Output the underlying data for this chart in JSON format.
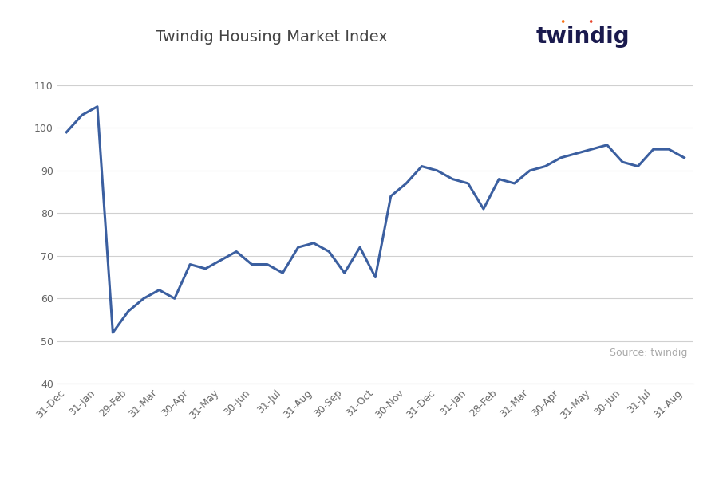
{
  "title": "Twindig Housing Market Index",
  "line_color": "#3B5FA0",
  "line_width": 2.2,
  "background_color": "#ffffff",
  "ylim": [
    40,
    115
  ],
  "yticks": [
    40,
    50,
    60,
    70,
    80,
    90,
    100,
    110
  ],
  "source_text": "Source: twindig",
  "x_labels": [
    "31-Dec",
    "31-Jan",
    "29-Feb",
    "31-Mar",
    "30-Apr",
    "31-May",
    "30-Jun",
    "31-Jul",
    "31-Aug",
    "30-Sep",
    "31-Oct",
    "30-Nov",
    "31-Dec",
    "31-Jan",
    "28-Feb",
    "31-Mar",
    "30-Apr",
    "31-May",
    "30-Jun",
    "31-Jul",
    "31-Aug"
  ],
  "y_values": [
    99,
    103,
    105,
    52,
    57,
    60,
    62,
    60,
    68,
    67,
    69,
    71,
    68,
    68,
    66,
    72,
    73,
    71,
    66,
    72,
    65,
    84,
    87,
    91,
    90,
    88,
    87,
    81,
    88,
    87,
    90,
    91,
    93,
    94,
    95,
    96,
    92,
    91,
    95,
    95,
    93
  ],
  "twindig_text_color": "#1a1a4e",
  "twindig_dot_color_w": "#f97316",
  "twindig_dot_color_i": "#e8472e"
}
